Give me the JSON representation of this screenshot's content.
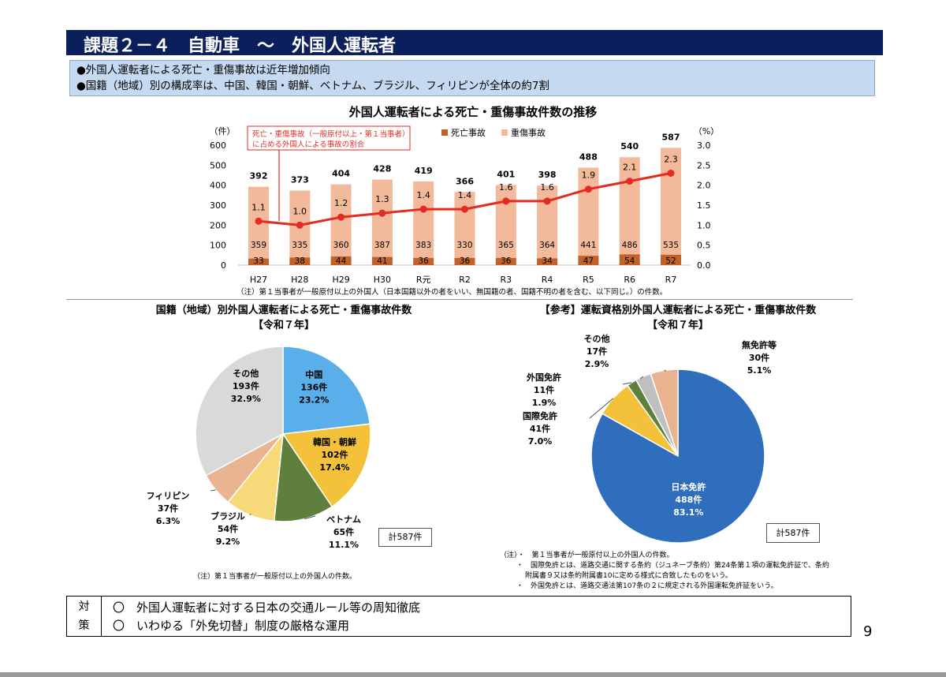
{
  "header": {
    "title": "課題２－４　自動車　～　外国人運転者"
  },
  "summary": {
    "line1": "●外国人運転者による死亡・重傷事故は近年増加傾向",
    "line2": "●国籍（地域）別の構成率は、中国、韓国・朝鮮、ベトナム、ブラジル、フィリピンが全体の約7割"
  },
  "colors": {
    "title_bg": "#0b1f5c",
    "summary_bg": "#c5d9f1",
    "fatal": "#c0622a",
    "serious": "#f2b99a",
    "ratio_line": "#e32b22"
  },
  "chart_data": [
    {
      "type": "bar",
      "title": "外国人運転者による死亡・重傷事故件数の推移",
      "ylabel": "（件）",
      "y2label": "（%）",
      "ylim": [
        0,
        600
      ],
      "y_ticks": [
        "0",
        "100",
        "200",
        "300",
        "400",
        "500",
        "600"
      ],
      "y2lim": [
        0,
        3.0
      ],
      "y2_ticks": [
        "0.0",
        "0.5",
        "1.0",
        "1.5",
        "2.0",
        "2.5",
        "3.0"
      ],
      "categories": [
        "H27",
        "H28",
        "H29",
        "H30",
        "R元",
        "R2",
        "R3",
        "R4",
        "R5",
        "R6",
        "R7"
      ],
      "series": [
        {
          "name": "死亡事故",
          "values": [
            33,
            38,
            44,
            41,
            36,
            36,
            36,
            34,
            47,
            54,
            52
          ]
        },
        {
          "name": "重傷事故",
          "values": [
            359,
            335,
            360,
            387,
            383,
            330,
            365,
            364,
            441,
            486,
            535
          ]
        }
      ],
      "totals": [
        392,
        373,
        404,
        428,
        419,
        366,
        401,
        398,
        488,
        540,
        587
      ],
      "ratio": {
        "values": [
          1.1,
          1.0,
          1.2,
          1.3,
          1.4,
          1.4,
          1.6,
          1.6,
          1.9,
          2.1,
          2.3
        ],
        "labels": [
          "1.1",
          "1.0",
          "1.2",
          "1.3",
          "1.4",
          "1.4",
          "1.6",
          "1.6",
          "1.9",
          "2.1",
          "2.3"
        ]
      },
      "annotation": [
        "死亡・重傷事故（一般原付以上・第１当事者）",
        "に占める外国人による事故の割合"
      ],
      "legend_position": "top",
      "note": "（注）第１当事者が一般原付以上の外国人（日本国籍以外の者をいい、無国籍の者、国籍不明の者を含む、以下同じ。）の件数。"
    },
    {
      "type": "pie",
      "title": "国籍（地域）別外国人運転者による死亡・重傷事故件数",
      "subtitle": "【令和７年】",
      "slices": [
        {
          "label": "中国",
          "count": "136件",
          "pct": "23.2%",
          "value": 136,
          "color": "#5aafea"
        },
        {
          "label": "韓国・朝鮮",
          "count": "102件",
          "pct": "17.4%",
          "value": 102,
          "color": "#f3c23a"
        },
        {
          "label": "ベトナム",
          "count": "65件",
          "pct": "11.1%",
          "value": 65,
          "color": "#5f7f3d"
        },
        {
          "label": "ブラジル",
          "count": "54件",
          "pct": "9.2%",
          "value": 54,
          "color": "#f7d97a"
        },
        {
          "label": "フィリピン",
          "count": "37件",
          "pct": "6.3%",
          "value": 37,
          "color": "#e9b48f"
        },
        {
          "label": "その他",
          "count": "193件",
          "pct": "32.9%",
          "value": 193,
          "color": "#d9d9d9"
        }
      ],
      "total": "計587件",
      "note": "（注）第１当事者が一般原付以上の外国人の件数。"
    },
    {
      "type": "pie",
      "title": "【参考】運転資格別外国人運転者による死亡・重傷事故件数",
      "subtitle": "【令和７年】",
      "slices": [
        {
          "label": "日本免許",
          "count": "488件",
          "pct": "83.1%",
          "value": 488,
          "color": "#2f6ebc"
        },
        {
          "label": "国際免許",
          "count": "41件",
          "pct": "7.0%",
          "value": 41,
          "color": "#f3c23a"
        },
        {
          "label": "外国免許",
          "count": "11件",
          "pct": "1.9%",
          "value": 11,
          "color": "#5f7f3d"
        },
        {
          "label": "その他",
          "count": "17件",
          "pct": "2.9%",
          "value": 17,
          "color": "#bfbfbf"
        },
        {
          "label": "無免許等",
          "count": "30件",
          "pct": "5.1%",
          "value": 30,
          "color": "#e9b48f"
        }
      ],
      "total": "計587件",
      "notes": [
        "（注）・　第１当事者が一般原付以上の外国人の件数。",
        "・　国際免許とは、道路交通に関する条約（ジュネーブ条約）第24条第１項の運転免許証で、条約",
        "附属書９又は条約附属書10に定める様式に合致したものをいう。",
        "・　外国免許とは、道路交通法第107条の２に規定される外国運転免許証をいう。"
      ]
    }
  ],
  "measures": {
    "label_top": "対",
    "label_bottom": "策",
    "item1": "〇　外国人運転者に対する日本の交通ルール等の周知徹底",
    "item2": "〇　いわゆる「外免切替」制度の厳格な運用"
  },
  "page_number": "9"
}
